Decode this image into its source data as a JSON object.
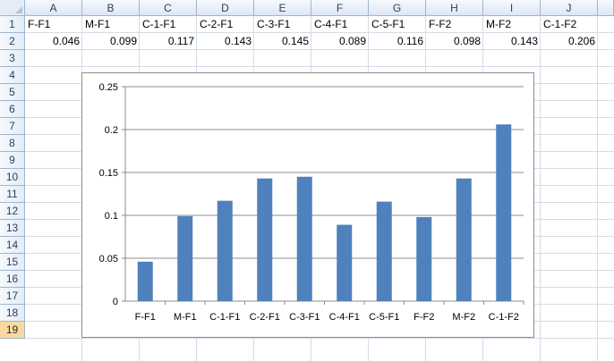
{
  "columns": [
    "A",
    "B",
    "C",
    "D",
    "E",
    "F",
    "G",
    "H",
    "I",
    "J"
  ],
  "rows": [
    "1",
    "2",
    "3",
    "4",
    "5",
    "6",
    "7",
    "8",
    "9",
    "10",
    "11",
    "12",
    "13",
    "14",
    "15",
    "16",
    "17",
    "18",
    "19"
  ],
  "active_row": "19",
  "cells": {
    "row1": [
      "F-F1",
      "M-F1",
      "C-1-F1",
      "C-2-F1",
      "C-3-F1",
      "C-4-F1",
      "C-5-F1",
      "F-F2",
      "M-F2",
      "C-1-F2"
    ],
    "row2": [
      "0.046",
      "0.099",
      "0.117",
      "0.143",
      "0.145",
      "0.089",
      "0.116",
      "0.098",
      "0.143",
      "0.206"
    ]
  },
  "chart_data": {
    "type": "bar",
    "categories": [
      "F-F1",
      "M-F1",
      "C-1-F1",
      "C-2-F1",
      "C-3-F1",
      "C-4-F1",
      "C-5-F1",
      "F-F2",
      "M-F2",
      "C-1-F2"
    ],
    "values": [
      0.046,
      0.099,
      0.117,
      0.143,
      0.145,
      0.089,
      0.116,
      0.098,
      0.143,
      0.206
    ],
    "yticks": [
      "0",
      "0.05",
      "0.1",
      "0.15",
      "0.2",
      "0.25"
    ],
    "ylim": [
      0,
      0.25
    ],
    "grid": true,
    "legend": "none",
    "bar_color": "#4f81bd"
  }
}
